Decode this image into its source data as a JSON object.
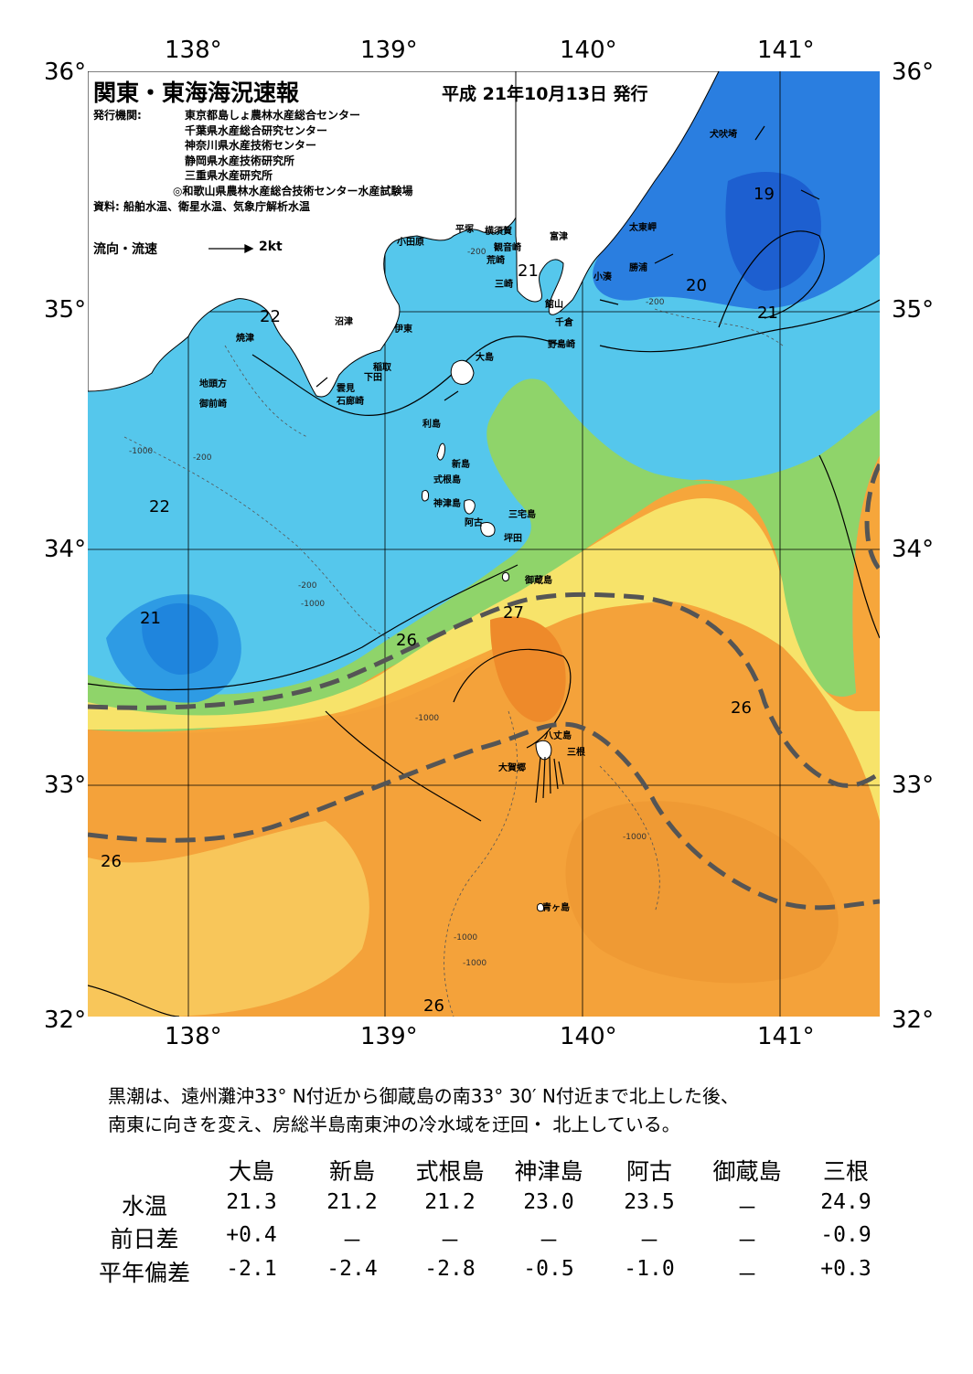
{
  "map": {
    "title": "関東・東海海況速報",
    "date": "平成 21年10月13日 発行",
    "issuers_label": "発行機関:",
    "issuers": [
      "東京都島しょ農林水産総合センター",
      "千葉県水産総合研究センター",
      "神奈川県水産技術センター",
      "静岡県水産技術研究所",
      "三重県水産研究所",
      "◎和歌山県農林水産総合技術センター水産試験場"
    ],
    "source": "資料: 船舶水温、衛星水温、気象庁解析水温",
    "flow_label": "流向・流速",
    "flow_scale": "2kt",
    "lon_labels": [
      "138°",
      "139°",
      "140°",
      "141°"
    ],
    "lat_labels": [
      "36°",
      "35°",
      "34°",
      "33°",
      "32°"
    ],
    "isotherm_labels": [
      "22",
      "22",
      "21",
      "21",
      "19",
      "20",
      "21",
      "26",
      "27",
      "26",
      "26",
      "26"
    ],
    "depth_label_1000": "-1000",
    "depth_label_200": "-200",
    "place_names": [
      "犬吠埼",
      "太東岬",
      "勝浦",
      "小湊",
      "富津",
      "横須賀",
      "観音崎",
      "荒崎",
      "三崎",
      "平塚",
      "小田原",
      "館山",
      "千倉",
      "野島崎",
      "大島",
      "伊東",
      "稲取",
      "下田",
      "雲見",
      "石廊崎",
      "沼津",
      "焼津",
      "地頭方",
      "御前崎",
      "利島",
      "新島",
      "式根島",
      "神津島",
      "三宅島",
      "阿古",
      "坪田",
      "御蔵島",
      "八丈島",
      "三根",
      "大賀郷",
      "青ヶ島"
    ],
    "colors": {
      "kuroshio_axis": "#555555",
      "land": "#ffffff"
    }
  },
  "summary": [
    "黒潮は、遠州灘沖33° N付近から御蔵島の南33° 30′ N付近まで北上した後、",
    "南東に向きを変え、房総半島南東沖の冷水域を迂回・ 北上している。"
  ],
  "table": {
    "columns": [
      "大島",
      "新島",
      "式根島",
      "神津島",
      "阿古",
      "御蔵島",
      "三根"
    ],
    "rows": [
      {
        "label": "水温",
        "values": [
          "21.3",
          "21.2",
          "21.2",
          "23.0",
          "23.5",
          "－",
          "24.9"
        ]
      },
      {
        "label": "前日差",
        "values": [
          "+0.4",
          "－",
          "－",
          "－",
          "－",
          "－",
          "-0.9"
        ]
      },
      {
        "label": "平年偏差",
        "values": [
          "-2.1",
          "-2.4",
          "-2.8",
          "-0.5",
          "-1.0",
          "－",
          "+0.3"
        ]
      }
    ]
  }
}
